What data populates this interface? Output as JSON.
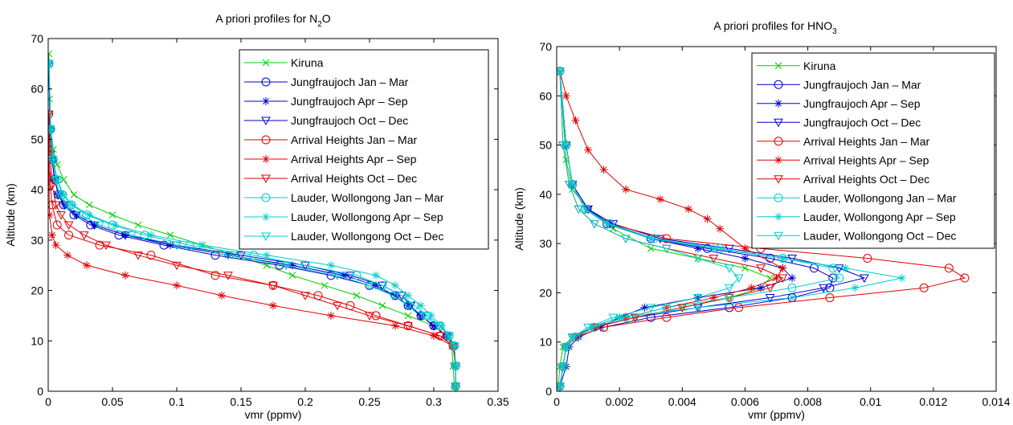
{
  "chart_data": [
    {
      "type": "line",
      "title_prefix": "A priori profiles for N",
      "title_sub": "2",
      "title_suffix": "O",
      "xlabel": "vmr (ppmv)",
      "ylabel": "Altitude (km)",
      "xlim": [
        0,
        0.35
      ],
      "ylim": [
        0,
        70
      ],
      "xticks": [
        "0",
        "0.05",
        "0.1",
        "0.15",
        "0.2",
        "0.25",
        "0.3",
        "0.35"
      ],
      "xtick_values": [
        0,
        0.05,
        0.1,
        0.15,
        0.2,
        0.25,
        0.3,
        0.35
      ],
      "yticks": [
        "0",
        "10",
        "20",
        "30",
        "40",
        "50",
        "60",
        "70"
      ],
      "ytick_values": [
        0,
        10,
        20,
        30,
        40,
        50,
        60,
        70
      ],
      "legend_position": "top-right",
      "series": [
        {
          "name": "Kiruna",
          "color": "#00cc00",
          "marker": "x",
          "x": [
            0.316,
            0.315,
            0.314,
            0.31,
            0.3,
            0.28,
            0.26,
            0.24,
            0.215,
            0.19,
            0.17,
            0.145,
            0.12,
            0.095,
            0.07,
            0.05,
            0.032,
            0.02,
            0.012,
            0.007,
            0.004,
            0.002,
            0.001,
            0.0005
          ],
          "y": [
            1,
            5,
            9,
            11,
            13,
            15,
            17,
            19,
            21,
            23,
            25,
            27,
            29,
            31,
            33,
            35,
            37,
            39,
            42,
            45,
            48,
            52,
            58,
            67
          ]
        },
        {
          "name": "Jungfraujoch Jan – Mar",
          "color": "#0000cc",
          "marker": "circle",
          "x": [
            0.317,
            0.317,
            0.316,
            0.31,
            0.3,
            0.29,
            0.28,
            0.27,
            0.25,
            0.22,
            0.18,
            0.13,
            0.09,
            0.055,
            0.033,
            0.02,
            0.012,
            0.008,
            0.005,
            0.003,
            0.0015,
            0.0005
          ],
          "y": [
            1,
            5,
            9,
            11,
            13,
            15,
            17,
            19,
            21,
            23,
            25,
            27,
            29,
            31,
            33,
            35,
            37,
            39,
            42,
            46,
            52,
            65
          ]
        },
        {
          "name": "Jungfraujoch Apr – Sep",
          "color": "#0000cc",
          "marker": "star",
          "x": [
            0.317,
            0.317,
            0.316,
            0.31,
            0.3,
            0.29,
            0.28,
            0.27,
            0.255,
            0.23,
            0.19,
            0.14,
            0.095,
            0.06,
            0.036,
            0.022,
            0.013,
            0.008,
            0.005,
            0.003,
            0.0015,
            0.0005
          ],
          "y": [
            1,
            5,
            9,
            11,
            13,
            15,
            17,
            19,
            21,
            23,
            25,
            27,
            29,
            31,
            33,
            35,
            37,
            39,
            42,
            46,
            52,
            65
          ]
        },
        {
          "name": "Jungfraujoch Oct – Dec",
          "color": "#0000cc",
          "marker": "triangle-down",
          "x": [
            0.317,
            0.317,
            0.316,
            0.31,
            0.3,
            0.29,
            0.282,
            0.275,
            0.26,
            0.235,
            0.2,
            0.15,
            0.1,
            0.06,
            0.036,
            0.022,
            0.013,
            0.008,
            0.005,
            0.003,
            0.0015,
            0.0005
          ],
          "y": [
            1,
            5,
            9,
            11,
            13,
            15,
            17,
            19,
            21,
            23,
            25,
            27,
            29,
            31,
            33,
            35,
            37,
            39,
            42,
            46,
            52,
            65
          ]
        },
        {
          "name": "Arrival Heights Jan – Mar",
          "color": "#e00000",
          "marker": "circle",
          "x": [
            0.317,
            0.317,
            0.315,
            0.305,
            0.28,
            0.255,
            0.235,
            0.21,
            0.175,
            0.13,
            0.08,
            0.04,
            0.016,
            0.007,
            0.003,
            0.0015,
            0.0008,
            0.0004
          ],
          "y": [
            1,
            5,
            9,
            11,
            13,
            15,
            17,
            19,
            21,
            23,
            27,
            29,
            31,
            33,
            37,
            41,
            47,
            55
          ]
        },
        {
          "name": "Arrival Heights Apr – Sep",
          "color": "#e00000",
          "marker": "star",
          "x": [
            0.317,
            0.317,
            0.315,
            0.3,
            0.27,
            0.22,
            0.175,
            0.135,
            0.1,
            0.06,
            0.03,
            0.015,
            0.006,
            0.003,
            0.001,
            0.0005,
            0.0002
          ],
          "y": [
            1,
            5,
            9,
            11,
            13,
            15,
            17,
            19,
            21,
            23,
            25,
            27,
            29,
            31,
            35,
            43,
            55
          ]
        },
        {
          "name": "Arrival Heights Oct – Dec",
          "color": "#e00000",
          "marker": "triangle-down",
          "x": [
            0.317,
            0.317,
            0.315,
            0.305,
            0.28,
            0.25,
            0.225,
            0.2,
            0.175,
            0.14,
            0.1,
            0.07,
            0.045,
            0.028,
            0.016,
            0.01,
            0.006,
            0.003,
            0.0015,
            0.0005
          ],
          "y": [
            1,
            5,
            9,
            11,
            13,
            15,
            17,
            19,
            21,
            23,
            25,
            27,
            29,
            31,
            33,
            35,
            37,
            41,
            47,
            55
          ]
        },
        {
          "name": "Lauder, Wollongong Jan – Mar",
          "color": "#00cccc",
          "marker": "circle",
          "x": [
            0.317,
            0.317,
            0.316,
            0.312,
            0.305,
            0.295,
            0.285,
            0.275,
            0.26,
            0.24,
            0.2,
            0.16,
            0.11,
            0.075,
            0.05,
            0.03,
            0.018,
            0.011,
            0.007,
            0.004,
            0.002,
            0.0007
          ],
          "y": [
            1,
            5,
            9,
            11,
            13,
            15,
            17,
            19,
            21,
            23,
            25,
            27,
            29,
            31,
            33,
            35,
            37,
            39,
            42,
            46,
            52,
            65
          ]
        },
        {
          "name": "Lauder, Wollongong Apr – Sep",
          "color": "#00cccc",
          "marker": "star",
          "x": [
            0.317,
            0.317,
            0.316,
            0.312,
            0.306,
            0.298,
            0.29,
            0.28,
            0.27,
            0.255,
            0.22,
            0.17,
            0.12,
            0.08,
            0.052,
            0.032,
            0.019,
            0.012,
            0.007,
            0.004,
            0.002,
            0.0007
          ],
          "y": [
            1,
            5,
            9,
            11,
            13,
            15,
            17,
            19,
            21,
            23,
            25,
            27,
            29,
            31,
            33,
            35,
            37,
            39,
            42,
            46,
            52,
            65
          ]
        },
        {
          "name": "Lauder, Wollongong Oct – Dec",
          "color": "#00cccc",
          "marker": "triangle-down",
          "x": [
            0.317,
            0.317,
            0.316,
            0.312,
            0.304,
            0.292,
            0.28,
            0.268,
            0.25,
            0.225,
            0.185,
            0.14,
            0.1,
            0.065,
            0.04,
            0.025,
            0.015,
            0.009,
            0.006,
            0.0035,
            0.0018,
            0.0006
          ],
          "y": [
            1,
            5,
            9,
            11,
            13,
            15,
            17,
            19,
            21,
            23,
            25,
            27,
            29,
            31,
            33,
            35,
            37,
            39,
            42,
            46,
            52,
            65
          ]
        }
      ]
    },
    {
      "type": "line",
      "title_prefix": "A priori profiles for HNO",
      "title_sub": "3",
      "title_suffix": "",
      "xlabel": "vmr (ppmv)",
      "ylabel": "Altitude (km)",
      "xlim": [
        0,
        0.014
      ],
      "ylim": [
        0,
        70
      ],
      "xticks": [
        "0",
        "0.002",
        "0.004",
        "0.006",
        "0.008",
        "0.01",
        "0.012",
        "0.014"
      ],
      "xtick_values": [
        0,
        0.002,
        0.004,
        0.006,
        0.008,
        0.01,
        0.012,
        0.014
      ],
      "yticks": [
        "0",
        "10",
        "20",
        "30",
        "40",
        "50",
        "60",
        "70"
      ],
      "ytick_values": [
        0,
        10,
        20,
        30,
        40,
        50,
        60,
        70
      ],
      "legend_position": "top-right",
      "series": [
        {
          "name": "Kiruna",
          "color": "#00cc00",
          "marker": "x",
          "x": [
            5e-05,
            0.0001,
            0.0002,
            0.0005,
            0.0012,
            0.0025,
            0.004,
            0.0055,
            0.0065,
            0.0068,
            0.006,
            0.0045,
            0.003,
            0.0018,
            0.001,
            0.0005,
            0.0003,
            0.0001
          ],
          "y": [
            1,
            5,
            9,
            11,
            13,
            15,
            17,
            19,
            21,
            23,
            25,
            27,
            29,
            33,
            37,
            41,
            47,
            65
          ]
        },
        {
          "name": "Jungfraujoch Jan – Mar",
          "color": "#0000cc",
          "marker": "circle",
          "x": [
            0.0001,
            0.0002,
            0.0003,
            0.0006,
            0.0015,
            0.003,
            0.0055,
            0.0075,
            0.0087,
            0.0088,
            0.0082,
            0.0068,
            0.0048,
            0.003,
            0.0016,
            0.0009,
            0.0005,
            0.0003,
            0.0001
          ],
          "y": [
            1,
            5,
            9,
            11,
            13,
            15,
            17,
            19,
            21,
            23,
            25,
            27,
            29,
            31,
            34,
            37,
            42,
            50,
            65
          ]
        },
        {
          "name": "Jungfraujoch Apr – Sep",
          "color": "#0000cc",
          "marker": "star",
          "x": [
            0.0001,
            0.0003,
            0.0004,
            0.0007,
            0.0014,
            0.002,
            0.0028,
            0.0045,
            0.0065,
            0.0075,
            0.0072,
            0.006,
            0.0045,
            0.003,
            0.0017,
            0.001,
            0.0005,
            0.0003,
            0.0001
          ],
          "y": [
            1,
            5,
            9,
            11,
            13,
            15,
            17,
            19,
            21,
            23,
            25,
            27,
            29,
            31,
            34,
            37,
            42,
            50,
            65
          ]
        },
        {
          "name": "Jungfraujoch Oct – Dec",
          "color": "#0000cc",
          "marker": "triangle-down",
          "x": [
            0.0001,
            0.0002,
            0.0003,
            0.0005,
            0.0012,
            0.0025,
            0.0045,
            0.0068,
            0.0085,
            0.0098,
            0.009,
            0.0075,
            0.0055,
            0.0033,
            0.0018,
            0.001,
            0.0005,
            0.0003,
            0.0001
          ],
          "y": [
            1,
            5,
            9,
            11,
            13,
            15,
            17,
            19,
            21,
            23,
            25,
            27,
            29,
            31,
            34,
            37,
            42,
            50,
            65
          ]
        },
        {
          "name": "Arrival Heights Jan – Mar",
          "color": "#e00000",
          "marker": "circle",
          "x": [
            0.0001,
            0.0002,
            0.0003,
            0.0006,
            0.0015,
            0.0035,
            0.0058,
            0.0087,
            0.0117,
            0.013,
            0.0125,
            0.0099,
            0.0065,
            0.0035,
            0.0017,
            0.0009,
            0.0005,
            0.0003,
            0.0001
          ],
          "y": [
            1,
            5,
            9,
            11,
            13,
            15,
            17,
            19,
            21,
            23,
            25,
            27,
            29,
            31,
            34,
            37,
            42,
            50,
            65
          ]
        },
        {
          "name": "Arrival Heights Apr – Sep",
          "color": "#e00000",
          "marker": "star",
          "x": [
            0.0001,
            0.0002,
            0.0003,
            0.0006,
            0.0012,
            0.0022,
            0.0035,
            0.005,
            0.0062,
            0.007,
            0.0072,
            0.006,
            0.0052,
            0.0048,
            0.0042,
            0.0033,
            0.0022,
            0.0015,
            0.001,
            0.0006,
            0.0003,
            0.0001
          ],
          "y": [
            1,
            5,
            9,
            11,
            13,
            15,
            17,
            19,
            21,
            23,
            25,
            29,
            33,
            35,
            37,
            39,
            41,
            45,
            49,
            55,
            60,
            65
          ]
        },
        {
          "name": "Arrival Heights Oct – Dec",
          "color": "#e00000",
          "marker": "triangle-down",
          "x": [
            0.0001,
            0.0002,
            0.0003,
            0.0005,
            0.0012,
            0.0025,
            0.004,
            0.0055,
            0.0068,
            0.0072,
            0.0065,
            0.005,
            0.0035,
            0.0022,
            0.0012,
            0.0007,
            0.0004,
            0.0002,
            0.0001
          ],
          "y": [
            1,
            5,
            9,
            11,
            13,
            15,
            17,
            19,
            21,
            23,
            25,
            27,
            29,
            31,
            34,
            37,
            42,
            50,
            65
          ]
        },
        {
          "name": "Lauder, Wollongong Jan – Mar",
          "color": "#00cccc",
          "marker": "circle",
          "x": [
            0.0001,
            0.0002,
            0.0003,
            0.0006,
            0.0012,
            0.0022,
            0.0035,
            0.0055,
            0.0075,
            0.009,
            0.0088,
            0.0072,
            0.0052,
            0.0031,
            0.0017,
            0.0009,
            0.0005,
            0.0003,
            0.0001
          ],
          "y": [
            1,
            5,
            9,
            11,
            13,
            15,
            17,
            19,
            21,
            23,
            25,
            27,
            29,
            31,
            34,
            37,
            42,
            50,
            65
          ]
        },
        {
          "name": "Lauder, Wollongong Apr – Sep",
          "color": "#00cccc",
          "marker": "star",
          "x": [
            0.0001,
            0.0002,
            0.0003,
            0.0005,
            0.0011,
            0.002,
            0.0045,
            0.0075,
            0.0095,
            0.011,
            0.0092,
            0.0072,
            0.005,
            0.003,
            0.0016,
            0.0009,
            0.0005,
            0.0003,
            0.0001
          ],
          "y": [
            1,
            5,
            9,
            11,
            13,
            15,
            17,
            19,
            21,
            23,
            25,
            27,
            29,
            31,
            34,
            37,
            42,
            50,
            65
          ]
        },
        {
          "name": "Lauder, Wollongong Oct – Dec",
          "color": "#00cccc",
          "marker": "triangle-down",
          "x": [
            0.0001,
            0.0002,
            0.0003,
            0.0005,
            0.001,
            0.0018,
            0.003,
            0.0045,
            0.0055,
            0.0058,
            0.0055,
            0.0045,
            0.0035,
            0.0022,
            0.0012,
            0.0007,
            0.0004,
            0.0002,
            0.0001
          ],
          "y": [
            1,
            5,
            9,
            11,
            13,
            15,
            17,
            19,
            21,
            23,
            25,
            27,
            29,
            31,
            34,
            37,
            42,
            50,
            65
          ]
        }
      ]
    }
  ]
}
